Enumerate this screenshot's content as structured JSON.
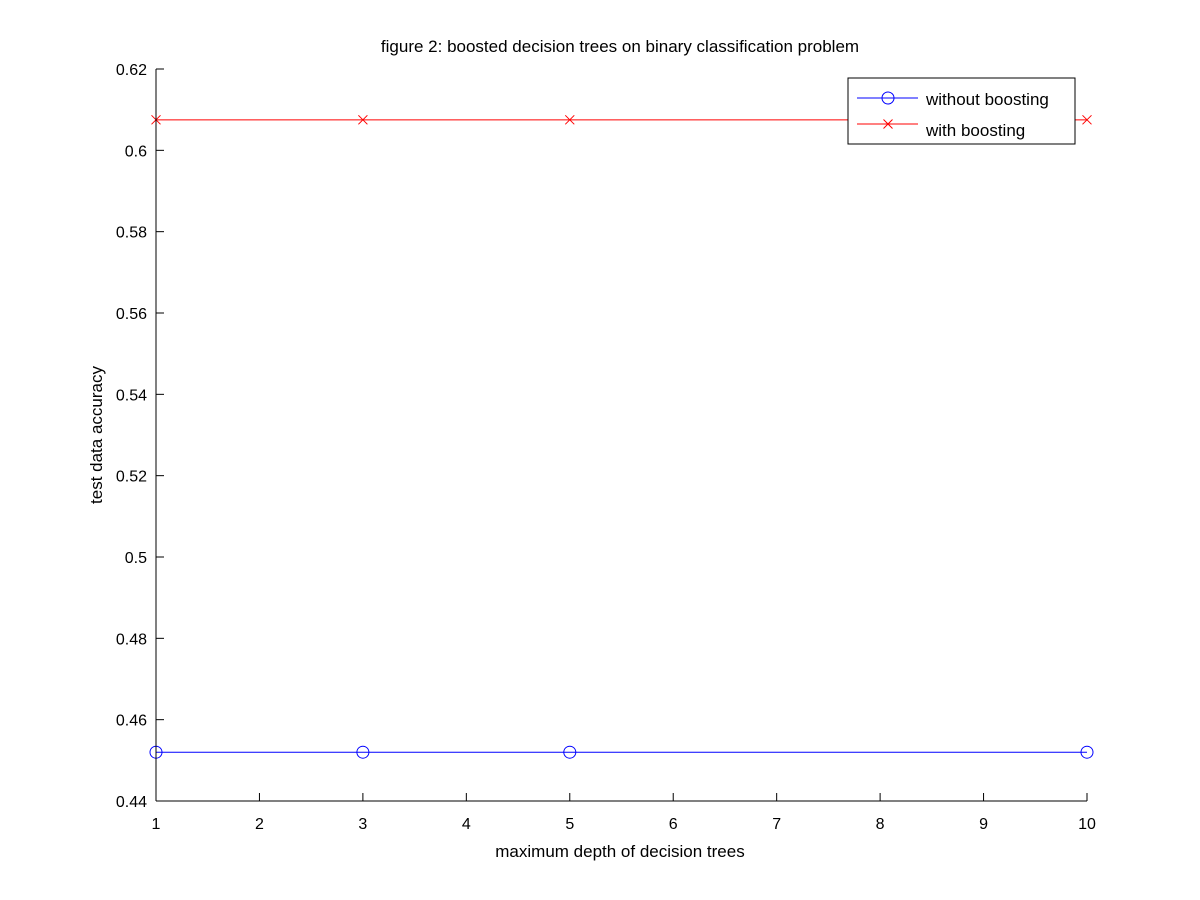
{
  "chart_data": {
    "type": "line",
    "title": "figure 2: boosted decision trees on binary classification problem",
    "xlabel": "maximum depth of decision trees",
    "ylabel": "test data accuracy",
    "xlim": [
      1,
      10
    ],
    "ylim": [
      0.44,
      0.62
    ],
    "xticks": [
      1,
      2,
      3,
      4,
      5,
      6,
      7,
      8,
      9,
      10
    ],
    "xtick_labels": [
      "1",
      "2",
      "3",
      "4",
      "5",
      "6",
      "7",
      "8",
      "9",
      "10"
    ],
    "yticks": [
      0.44,
      0.46,
      0.48,
      0.5,
      0.52,
      0.54,
      0.56,
      0.58,
      0.6,
      0.62
    ],
    "ytick_labels": [
      "0.44",
      "0.46",
      "0.48",
      "0.5",
      "0.52",
      "0.54",
      "0.56",
      "0.58",
      "0.6",
      "0.62"
    ],
    "grid": false,
    "legend_position": "top-right",
    "series": [
      {
        "name": "without boosting",
        "x": [
          1,
          3,
          5,
          10
        ],
        "y": [
          0.452,
          0.452,
          0.452,
          0.452
        ],
        "color": "#0000ff",
        "marker": "circle"
      },
      {
        "name": "with boosting",
        "x": [
          1,
          3,
          5,
          10
        ],
        "y": [
          0.6075,
          0.6075,
          0.6075,
          0.6075
        ],
        "color": "#ff0000",
        "marker": "x"
      }
    ]
  }
}
